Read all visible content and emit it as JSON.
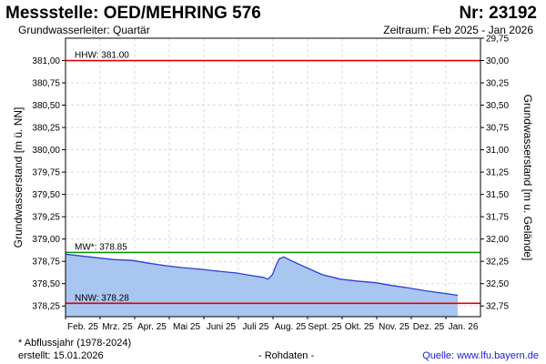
{
  "header": {
    "title": "Messstelle: OED/MEHRING 576",
    "number": "Nr: 23192",
    "aquifer": "Grundwasserleiter: Quartär",
    "period": "Zeitraum: Feb 2025 - Jan 2026"
  },
  "footer": {
    "note": "* Abflussjahr (1978-2024)",
    "created": "erstellt:  15.01.2026",
    "raw": "- Rohdaten -",
    "source": "Quelle:  www.lfu.bayern.de"
  },
  "colors": {
    "fill": "#a9c6f0",
    "line": "#2a3fd6",
    "hhw": "#e00000",
    "mw": "#009a00",
    "nnw": "#e00000",
    "grid": "#d8d8d8"
  },
  "chart_data": {
    "type": "area",
    "xlabel": "",
    "ylabel": "Grundwasserstand [m ü. NN]",
    "ylabel_right": "Grundwasserstand [m u. Gelände]",
    "ylim": [
      378.13,
      381.25
    ],
    "ylim_right": [
      29.75,
      32.87
    ],
    "grid": true,
    "x_tick_labels": [
      "Feb. 25",
      "Mrz. 25",
      "Apr. 25",
      "Mai 25",
      "Juni 25",
      "Juli 25",
      "Aug. 25",
      "Sept. 25",
      "Okt. 25",
      "Nov. 25",
      "Dez. 25",
      "Jan. 26"
    ],
    "y_ticks": [
      {
        "value": 378.25,
        "label": "378,25"
      },
      {
        "value": 378.5,
        "label": "378,50"
      },
      {
        "value": 378.75,
        "label": "378,75"
      },
      {
        "value": 379.0,
        "label": "379,00"
      },
      {
        "value": 379.25,
        "label": "379,25"
      },
      {
        "value": 379.5,
        "label": "379,50"
      },
      {
        "value": 379.75,
        "label": "379,75"
      },
      {
        "value": 380.0,
        "label": "380,00"
      },
      {
        "value": 380.25,
        "label": "380,25"
      },
      {
        "value": 380.5,
        "label": "380,50"
      },
      {
        "value": 380.75,
        "label": "380,75"
      },
      {
        "value": 381.0,
        "label": "381,00"
      }
    ],
    "y_ticks_right": [
      {
        "value": 29.75,
        "label": "29,75"
      },
      {
        "value": 30.0,
        "label": "30,00"
      },
      {
        "value": 30.25,
        "label": "30,25"
      },
      {
        "value": 30.5,
        "label": "30,50"
      },
      {
        "value": 30.75,
        "label": "30,75"
      },
      {
        "value": 31.0,
        "label": "31,00"
      },
      {
        "value": 31.25,
        "label": "31,25"
      },
      {
        "value": 31.5,
        "label": "31,50"
      },
      {
        "value": 31.75,
        "label": "31,75"
      },
      {
        "value": 32.0,
        "label": "32,00"
      },
      {
        "value": 32.25,
        "label": "32,25"
      },
      {
        "value": 32.5,
        "label": "32,50"
      },
      {
        "value": 32.75,
        "label": "32,75"
      }
    ],
    "reference_lines": [
      {
        "name": "HHW",
        "label": "HHW: 381.00",
        "value": 381.0
      },
      {
        "name": "MW",
        "label": "MW*: 378.85",
        "value": 378.85
      },
      {
        "name": "NNW",
        "label": "NNW: 378.28",
        "value": 378.28
      }
    ],
    "series": [
      {
        "x": [
          "2025-02-01",
          "2025-02-15",
          "2025-03-01",
          "2025-03-15",
          "2025-04-01",
          "2025-04-15",
          "2025-05-01",
          "2025-05-15",
          "2025-06-01",
          "2025-06-15",
          "2025-07-01",
          "2025-07-15",
          "2025-07-25",
          "2025-07-29",
          "2025-08-02",
          "2025-08-05",
          "2025-08-08",
          "2025-08-12",
          "2025-08-18",
          "2025-09-01",
          "2025-09-15",
          "2025-10-01",
          "2025-10-15",
          "2025-11-01",
          "2025-11-15",
          "2025-12-01",
          "2025-12-15",
          "2026-01-01",
          "2026-01-12"
        ],
        "values": [
          378.83,
          378.81,
          378.79,
          378.77,
          378.76,
          378.73,
          378.7,
          378.68,
          378.66,
          378.64,
          378.62,
          378.59,
          378.57,
          378.55,
          378.6,
          378.7,
          378.78,
          378.8,
          378.76,
          378.68,
          378.6,
          378.55,
          378.53,
          378.51,
          378.48,
          378.45,
          378.42,
          378.39,
          378.37
        ]
      }
    ]
  }
}
